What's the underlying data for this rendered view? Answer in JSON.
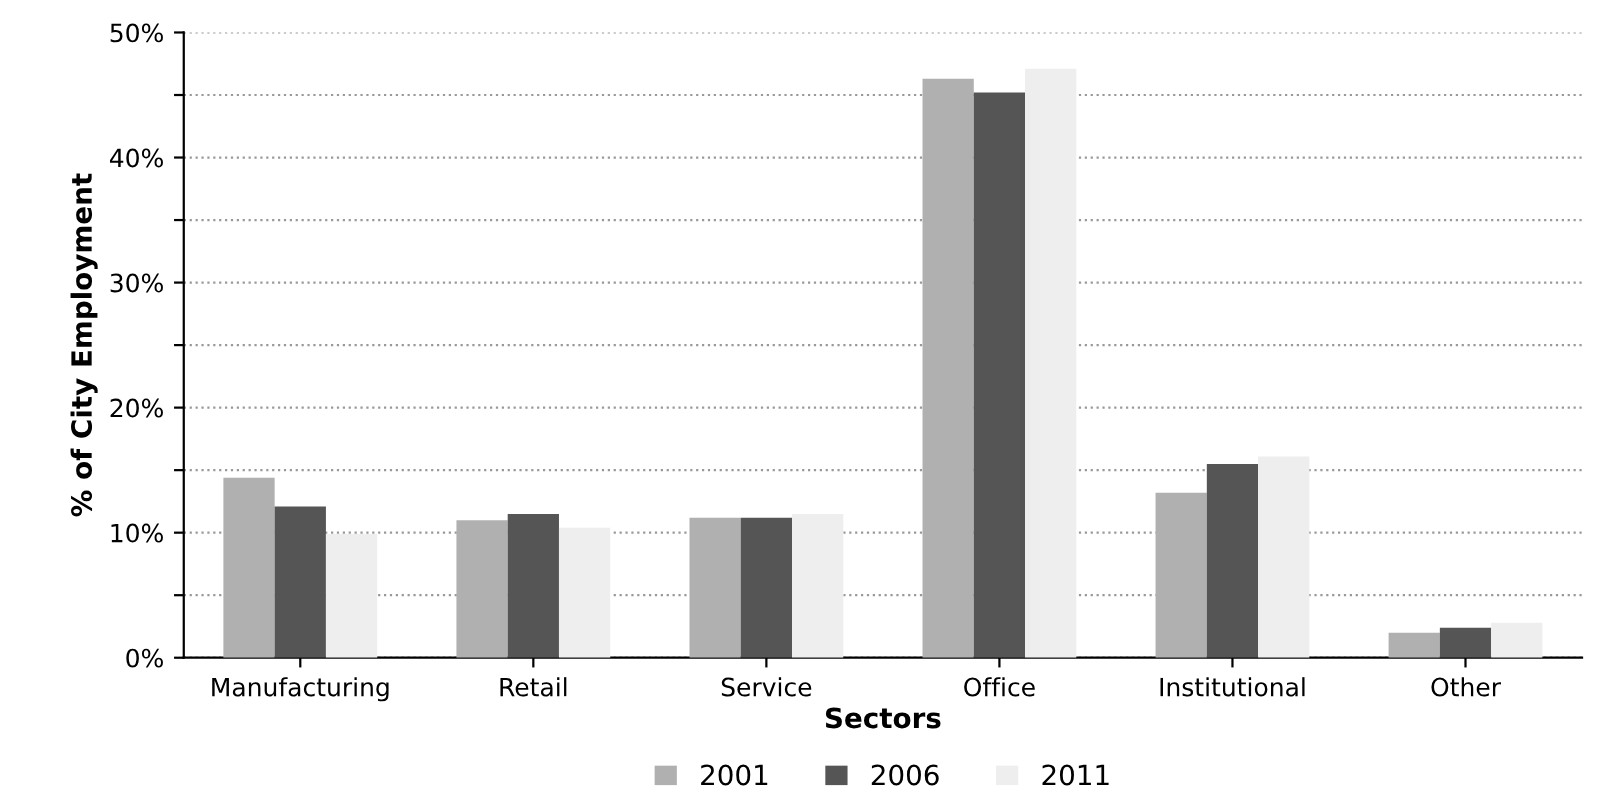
{
  "chart_data": {
    "type": "bar",
    "xlabel": "Sectors",
    "ylabel": "% of City Employment",
    "categories": [
      "Manufacturing",
      "Retail",
      "Service",
      "Office",
      "Institutional",
      "Other"
    ],
    "series": [
      {
        "name": "2001",
        "color": "#b0b0b0",
        "values": [
          14.4,
          11.0,
          11.2,
          46.3,
          13.2,
          2.0
        ]
      },
      {
        "name": "2006",
        "color": "#555555",
        "values": [
          12.1,
          11.5,
          11.2,
          45.2,
          15.5,
          2.4
        ]
      },
      {
        "name": "2011",
        "color": "#eeeeee",
        "values": [
          9.9,
          10.4,
          11.5,
          47.1,
          16.1,
          2.8
        ]
      }
    ],
    "ylim": [
      0,
      50
    ],
    "yticks": [
      {
        "value": 0,
        "label": "0%"
      },
      {
        "value": 5,
        "label": null
      },
      {
        "value": 10,
        "label": "10%"
      },
      {
        "value": 15,
        "label": null
      },
      {
        "value": 20,
        "label": "20%"
      },
      {
        "value": 25,
        "label": null
      },
      {
        "value": 30,
        "label": "30%"
      },
      {
        "value": 35,
        "label": null
      },
      {
        "value": 40,
        "label": "40%"
      },
      {
        "value": 45,
        "label": null
      },
      {
        "value": 50,
        "label": "50%"
      }
    ],
    "grid": "y",
    "legend": "bottom"
  }
}
